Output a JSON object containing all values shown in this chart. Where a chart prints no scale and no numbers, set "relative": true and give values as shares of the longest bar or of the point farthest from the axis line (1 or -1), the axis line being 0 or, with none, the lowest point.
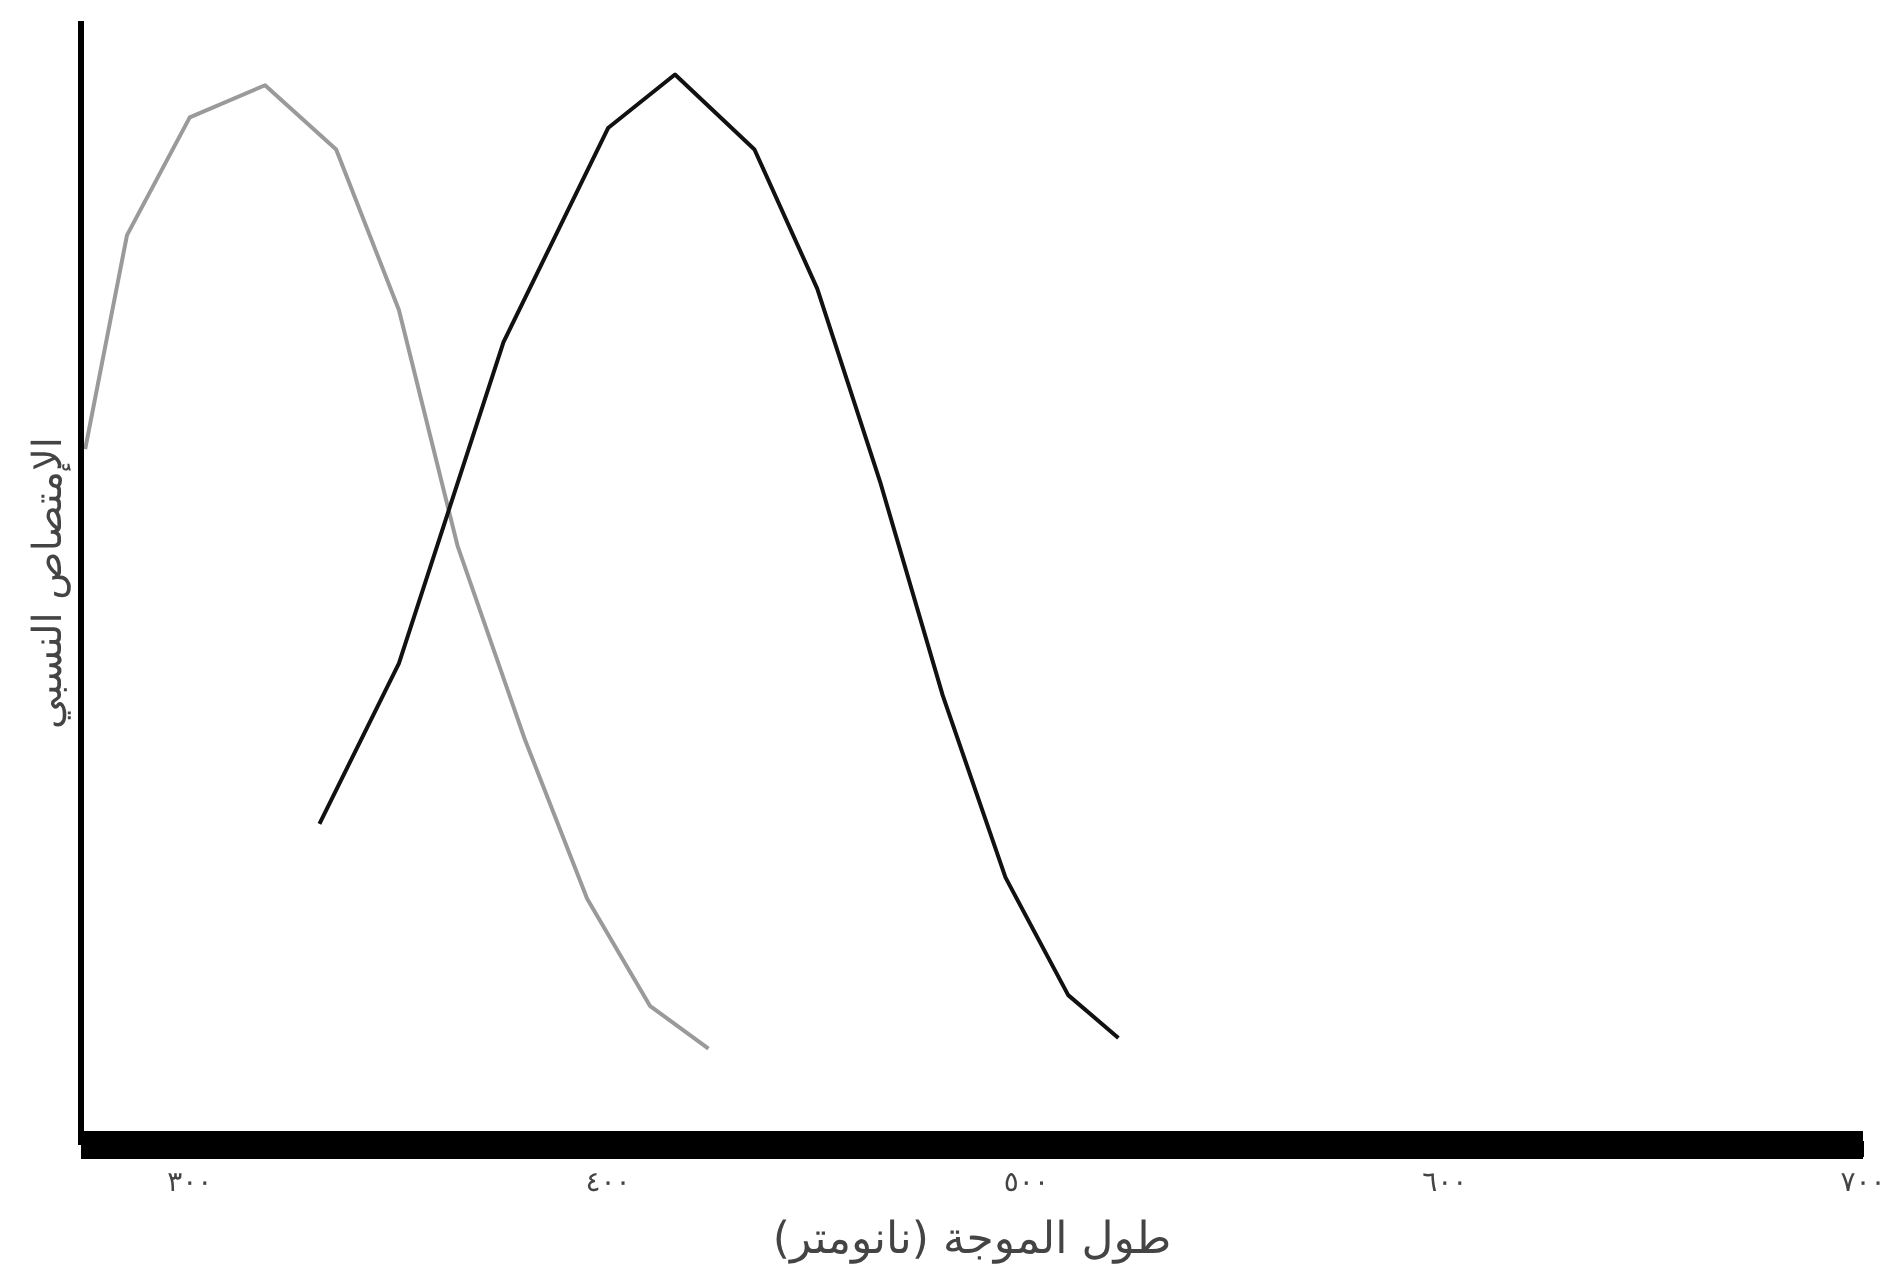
{
  "chart_data": {
    "type": "line",
    "relative": true,
    "xlabel": "طول الموجة (نانومتر)",
    "ylabel": "الإمتصاص النسبي",
    "xlim": [
      274,
      700
    ],
    "xticks": [
      {
        "value": 300,
        "label": "٣٠٠"
      },
      {
        "value": 350,
        "label": null
      },
      {
        "value": 400,
        "label": "٤٠٠"
      },
      {
        "value": 450,
        "label": null
      },
      {
        "value": 500,
        "label": "٥٠٠"
      },
      {
        "value": 550,
        "label": null
      },
      {
        "value": 600,
        "label": "٦٠٠"
      },
      {
        "value": 650,
        "label": null
      },
      {
        "value": 700,
        "label": "٧٠٠"
      }
    ],
    "grid": false,
    "series": [
      {
        "color": "#9a9a9a",
        "x": [
          275,
          285,
          300,
          318,
          335,
          350,
          364,
          380,
          395,
          410,
          424
        ],
        "values": [
          0.65,
          0.85,
          0.96,
          0.99,
          0.93,
          0.78,
          0.56,
          0.38,
          0.23,
          0.13,
          0.09
        ]
      },
      {
        "color": "#111111",
        "x": [
          331,
          350,
          375,
          400,
          416,
          435,
          450,
          465,
          480,
          495,
          510,
          522
        ],
        "values": [
          0.3,
          0.45,
          0.75,
          0.95,
          1.0,
          0.93,
          0.8,
          0.62,
          0.42,
          0.25,
          0.14,
          0.1
        ]
      }
    ]
  }
}
